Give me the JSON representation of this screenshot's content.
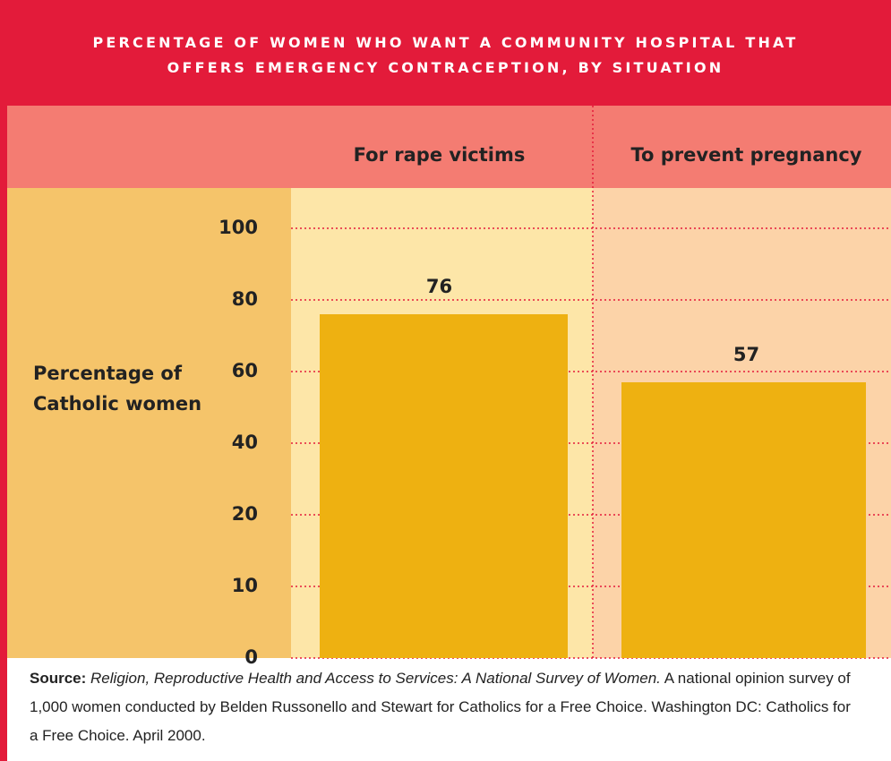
{
  "chart_data": {
    "type": "bar",
    "title": "PERCENTAGE OF WOMEN WHO WANT A COMMUNITY HOSPITAL THAT OFFERS EMERGENCY CONTRACEPTION, BY SITUATION",
    "y_label": "Percentage of Catholic women",
    "categories": [
      "For rape victims",
      "To prevent pregnancy"
    ],
    "values": [
      76,
      57
    ],
    "color": "#eeb111",
    "ylim": [
      0,
      100
    ],
    "yticks": [
      0,
      10,
      20,
      40,
      60,
      80,
      100
    ],
    "grid": true,
    "source_label": "Source:",
    "source_title": "Religion, Reproductive Health and Access to Services: A National Survey of Women.",
    "source_text": "A national opinion survey of 1,000 women conducted by Belden Russonello and Stewart for Catholics for a Free Choice. Washington DC: Catholics for a Free Choice. April 2000."
  }
}
